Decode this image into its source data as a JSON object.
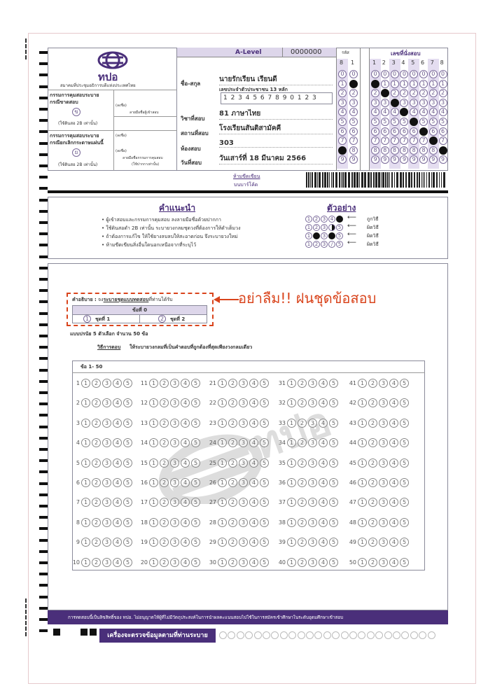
{
  "header": {
    "org_abbr": "ทปอ",
    "org_name": "สมาคมที่ประชุมอธิการบดีแห่งประเทศไทย",
    "exam_name": "A-Level",
    "sheet_no": "0000000",
    "code_label": "รหัส",
    "code_digits": [
      "8",
      "1"
    ],
    "seat_label": "เลขที่นั่งสอบ",
    "seat_digits": [
      "1",
      "2",
      "3",
      "4",
      "5",
      "6",
      "7",
      "8"
    ]
  },
  "proctor": {
    "absent_title1": "กรรมการคุมสอบระบาย",
    "absent_title2": "กรณีขาดสอบ",
    "absent_mark": "ข",
    "pencil_note": "(ใช้ดินสอ 2B เท่านั้น)",
    "cancel_title1": "กรรมการคุมสอบระบาย",
    "cancel_title2": "กรณียกเลิกกระดาษแผ่นนี้",
    "cancel_mark": "ย",
    "sign_prefix": "(ลงชื่อ)",
    "sign1": "ลายมือชื่อผู้เข้าสอบ",
    "sign2": "ลายมือชื่อกรรมการคุมสอบ",
    "sign2b": "(ใช้ปากกาเท่านั้น)"
  },
  "candidate": {
    "name_label": "ชื่อ-สกุล",
    "name": "นายรักเรียน  เรียนดี",
    "id_label": "เลขประจำตัวประชาชน 13 หลัก",
    "id": "1 2 3 4 5 6 7 8 9 0 1 2 3",
    "subject_label": "วิชาที่สอบ",
    "subject": "81 ภาษาไทย",
    "venue_label": "สถานที่สอบ",
    "venue": "โรงเรียนสันติสามัคคี",
    "room_label": "ห้องสอบ",
    "room": "303",
    "date_label": "วันที่สอบ",
    "date": "วันเสาร์ที่ 18  มีนาคม 2566"
  },
  "barcode": {
    "note1": "ห้ามขีดเขียน",
    "note2": "บนบาร์โค้ด"
  },
  "instructions": {
    "title": "คำแนะนำ",
    "items": [
      "ผู้เข้าสอบและกรรมการคุมสอบ ลงลายมือชื่อด้วยปากกา",
      "ใช้ดินสอดำ 2B เท่านั้น ระบายวงกลมชุดวงที่ต้องการให้ดำเต็มวง",
      "ถ้าต้องการแก้ไข ให้ใช้ยางลบลบให้สะอาดก่อน จึงระบายวงใหม่",
      "ห้ามขีดเขียนสิ่งอื่นใดนอกเหนือจากที่ระบุไว้"
    ],
    "example_title": "ตัวอย่าง",
    "examples": [
      "ถูกวิธี",
      "ผิดวิธี",
      "ผิดวิธี",
      "ผิดวิธี"
    ]
  },
  "set": {
    "desc_label": "คำอธิบาย :",
    "desc_pre": "จง",
    "desc_u": "ระบายชุดแบบทดสอบ",
    "desc_post": "ที่ท่านได้รับ",
    "item0": "ข้อที่ 0",
    "opt1": "ชุดที่ 1",
    "opt2": "ชุดที่ 2",
    "reminder": "อย่าลืม!! ฝนชุดข้อสอบ"
  },
  "answer": {
    "type": "แบบปรนัย 5 ตัวเลือก  จำนวน 50 ข้อ",
    "howto_label": "วิธีการตอบ",
    "howto": "ให้ระบายวงกลมที่เป็นคำตอบที่ถูกต้องที่สุดเพียงวงกลมเดียว",
    "range": "ข้อ 1- 50",
    "choices": [
      "1",
      "2",
      "3",
      "4",
      "5"
    ],
    "count": 50
  },
  "footer": {
    "notice": "การทดสอบนี้เป็นลิขสิทธิ์ของ ทปอ. ไม่อนุญาตให้ผู้ที่ไม่มีวัตถุประสงค์ในการนำผลคะแนนสอบไปใช้ในการสมัครเข้าศึกษาในระดับอุดมศึกษาเข้าสอบ",
    "machine": "เครื่องจะตรวจข้อมูลตามที่ท่านระบาย"
  },
  "colors": {
    "purple": "#4a2f7a",
    "red": "#d9441c",
    "light_purple": "#ddd6ea"
  }
}
